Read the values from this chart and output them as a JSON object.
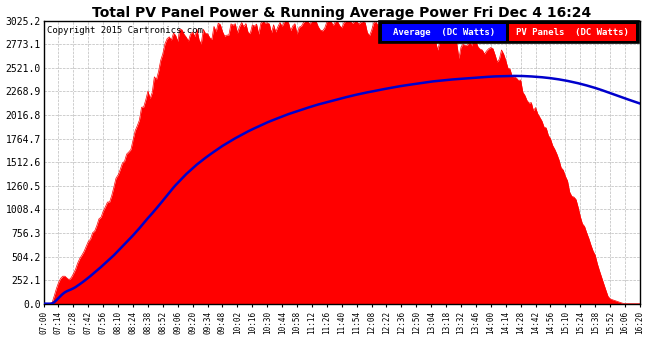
{
  "title": "Total PV Panel Power & Running Average Power Fri Dec 4 16:24",
  "copyright": "Copyright 2015 Cartronics.com",
  "legend_label_avg": "Average  (DC Watts)",
  "legend_label_pv": "PV Panels  (DC Watts)",
  "ymax": 3025.2,
  "yticks": [
    0.0,
    252.1,
    504.2,
    756.3,
    1008.4,
    1260.5,
    1512.6,
    1764.7,
    2016.8,
    2268.9,
    2521.0,
    2773.1,
    3025.2
  ],
  "bg_color": "#ffffff",
  "plot_bg_color": "#ffffff",
  "grid_color": "#aaaaaa",
  "fill_color": "#ff0000",
  "avg_line_color": "#0000cc",
  "x_start_hour": 7,
  "x_start_min": 0,
  "x_end_hour": 16,
  "x_end_min": 20,
  "tick_interval_min": 14
}
